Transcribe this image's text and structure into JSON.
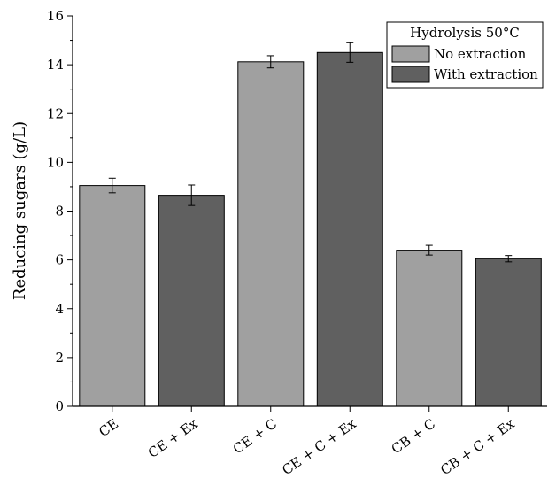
{
  "chart_data": {
    "type": "bar",
    "ylabel": "Reducing sugars (g/L)",
    "xlabel": "",
    "ylim": [
      0,
      16
    ],
    "yticks": [
      0,
      2,
      4,
      6,
      8,
      10,
      12,
      14,
      16
    ],
    "categories": [
      "CE",
      "CE + Ex",
      "CE + C",
      "CE + C + Ex",
      "CB + C",
      "CB + C + Ex"
    ],
    "series": [
      {
        "name": "No extraction",
        "color": "#a0a0a0"
      },
      {
        "name": "With extraction",
        "color": "#606060"
      }
    ],
    "bars": [
      {
        "category": "CE",
        "series": "No extraction",
        "value": 9.05,
        "error": 0.3
      },
      {
        "category": "CE + Ex",
        "series": "With extraction",
        "value": 8.65,
        "error": 0.42
      },
      {
        "category": "CE + C",
        "series": "No extraction",
        "value": 14.12,
        "error": 0.25
      },
      {
        "category": "CE + C + Ex",
        "series": "With extraction",
        "value": 14.5,
        "error": 0.4
      },
      {
        "category": "CB + C",
        "series": "No extraction",
        "value": 6.4,
        "error": 0.2
      },
      {
        "category": "CB + C + Ex",
        "series": "With extraction",
        "value": 6.05,
        "error": 0.13
      }
    ],
    "legend": {
      "title": "Hydrolysis 50°C",
      "position": "top-right"
    },
    "grid": false
  }
}
